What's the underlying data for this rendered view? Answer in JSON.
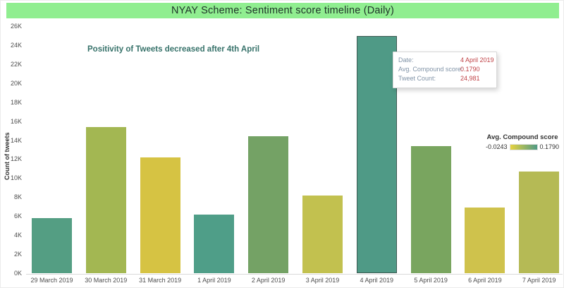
{
  "title": "NYAY Scheme: Sentiment score timeline (Daily)",
  "title_bar_color": "#90ee90",
  "title_text_color": "#20352a",
  "annotation": "Positivity of Tweets decreased after 4th April",
  "tooltip": {
    "rows": [
      {
        "label": "Date:",
        "value": "4 April 2019"
      },
      {
        "label": "Avg. Compound score:",
        "value": "0.1790"
      },
      {
        "label": "Tweet Count:",
        "value": "24,981"
      }
    ]
  },
  "legend": {
    "title": "Avg. Compound score",
    "min_label": "-0.0243",
    "max_label": "0.1790",
    "gradient_start": "#e6d23f",
    "gradient_end": "#4f9a86",
    "position": "right"
  },
  "chart_data": {
    "type": "bar",
    "title": "NYAY Scheme: Sentiment score timeline (Daily)",
    "xlabel": "",
    "ylabel": "Count of tweets",
    "ylim": [
      0,
      26000
    ],
    "grid": false,
    "y_tick_values": [
      0,
      2000,
      4000,
      6000,
      8000,
      10000,
      12000,
      14000,
      16000,
      18000,
      20000,
      22000,
      24000,
      26000
    ],
    "y_tick_labels": [
      "0K",
      "2K",
      "4K",
      "6K",
      "8K",
      "10K",
      "12K",
      "14K",
      "16K",
      "18K",
      "20K",
      "22K",
      "24K",
      "26K"
    ],
    "categories": [
      "29 March 2019",
      "30 March 2019",
      "31 March 2019",
      "1 April 2019",
      "2 April 2019",
      "3 April 2019",
      "4 April 2019",
      "5 April 2019",
      "6 April 2019",
      "7 April 2019"
    ],
    "series": [
      {
        "name": "Tweet Count",
        "values": [
          5800,
          15400,
          12200,
          6200,
          14400,
          8200,
          24981,
          13400,
          6900,
          10700
        ]
      }
    ],
    "bar_colors": [
      "#549e83",
      "#a3b752",
      "#d6c343",
      "#4f9e88",
      "#74a265",
      "#c2c14f",
      "#4f9a86",
      "#79a55f",
      "#cfc24c",
      "#b5ba55"
    ],
    "color_encodes": "Avg. Compound score",
    "color_range_labels": [
      "-0.0243",
      "0.1790"
    ],
    "highlighted_index": 6,
    "highlighted_tooltip": {
      "date": "4 April 2019",
      "avg_compound_score": "0.1790",
      "tweet_count": "24,981"
    }
  }
}
